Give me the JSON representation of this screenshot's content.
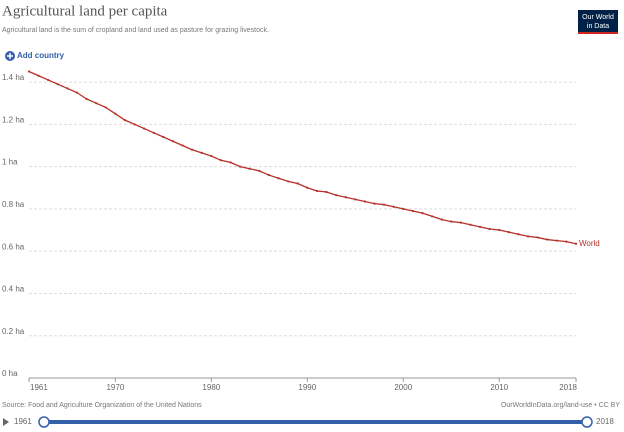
{
  "chart_data": {
    "type": "line",
    "title": "Agricultural land per capita",
    "subtitle": "Agricultural land is the sum of cropland and land used as pasture for grazing livestock.",
    "logo": [
      "Our World",
      "in Data"
    ],
    "add_button": "Add country",
    "source": "Source: Food and Agriculture Organization of the United Nations",
    "license": "OurWorldInData.org/land-use • CC BY",
    "timeline": [
      1961,
      2018
    ],
    "x": [
      1961,
      1962,
      1963,
      1964,
      1965,
      1966,
      1967,
      1968,
      1969,
      1970,
      1971,
      1972,
      1973,
      1974,
      1975,
      1976,
      1977,
      1978,
      1979,
      1980,
      1981,
      1982,
      1983,
      1984,
      1985,
      1986,
      1987,
      1988,
      1989,
      1990,
      1991,
      1992,
      1993,
      1994,
      1995,
      1996,
      1997,
      1998,
      1999,
      2000,
      2001,
      2002,
      2003,
      2004,
      2005,
      2006,
      2007,
      2008,
      2009,
      2010,
      2011,
      2012,
      2013,
      2014,
      2015,
      2016,
      2017,
      2018
    ],
    "series": [
      {
        "name": "World",
        "color": "#b5302a",
        "values": [
          1.45,
          1.43,
          1.41,
          1.39,
          1.37,
          1.35,
          1.32,
          1.3,
          1.28,
          1.25,
          1.22,
          1.2,
          1.18,
          1.16,
          1.14,
          1.12,
          1.1,
          1.08,
          1.065,
          1.05,
          1.03,
          1.02,
          1.0,
          0.99,
          0.98,
          0.96,
          0.945,
          0.93,
          0.92,
          0.9,
          0.885,
          0.88,
          0.865,
          0.855,
          0.845,
          0.835,
          0.825,
          0.82,
          0.81,
          0.8,
          0.79,
          0.78,
          0.765,
          0.75,
          0.74,
          0.735,
          0.725,
          0.715,
          0.705,
          0.7,
          0.69,
          0.68,
          0.67,
          0.665,
          0.655,
          0.65,
          0.645,
          0.635
        ]
      }
    ],
    "xlim": [
      1961,
      2018
    ],
    "xticks": [
      1961,
      1970,
      1980,
      1990,
      2000,
      2010,
      2018
    ],
    "ylim": [
      0,
      1.45
    ],
    "yticks": [
      {
        "value": 0,
        "label": "0 ha"
      },
      {
        "value": 0.2,
        "label": "0.2 ha"
      },
      {
        "value": 0.4,
        "label": "0.4 ha"
      },
      {
        "value": 0.6,
        "label": "0.6 ha"
      },
      {
        "value": 0.8,
        "label": "0.8 ha"
      },
      {
        "value": 1,
        "label": "1 ha"
      },
      {
        "value": 1.2,
        "label": "1.2 ha"
      },
      {
        "value": 1.4,
        "label": "1.4 ha"
      }
    ],
    "grid": true
  }
}
